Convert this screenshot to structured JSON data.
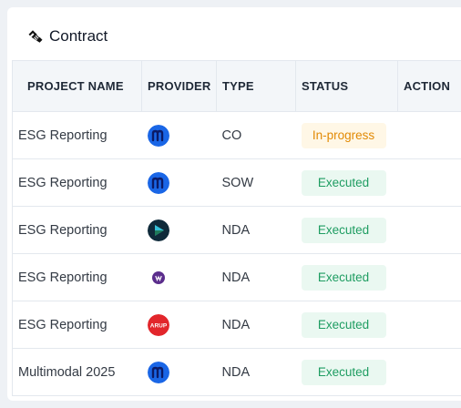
{
  "card": {
    "title": "Contract",
    "icon": "handshake-icon"
  },
  "table": {
    "columns": [
      "PROJECT NAME",
      "PROVIDER",
      "TYPE",
      "STATUS",
      "ACTION"
    ],
    "rows": [
      {
        "project": "ESG Reporting",
        "provider_logo": "m-logo-blue",
        "type": "CO",
        "status": "In-progress",
        "status_kind": "progress"
      },
      {
        "project": "ESG Reporting",
        "provider_logo": "m-logo-blue",
        "type": "SOW",
        "status": "Executed",
        "status_kind": "executed"
      },
      {
        "project": "ESG Reporting",
        "provider_logo": "dark-play-logo",
        "type": "NDA",
        "status": "Executed",
        "status_kind": "executed"
      },
      {
        "project": "ESG Reporting",
        "provider_logo": "w-logo-purple",
        "type": "NDA",
        "status": "Executed",
        "status_kind": "executed"
      },
      {
        "project": "ESG Reporting",
        "provider_logo": "arup-logo",
        "type": "NDA",
        "status": "Executed",
        "status_kind": "executed"
      },
      {
        "project": "Multimodal 2025",
        "provider_logo": "m-logo-blue",
        "type": "NDA",
        "status": "Executed",
        "status_kind": "executed"
      }
    ],
    "logo_text": {
      "arup": "ARUP"
    }
  },
  "colors": {
    "progress_bg": "#fff7e6",
    "progress_fg": "#e28a05",
    "executed_bg": "#eaf8f1",
    "executed_fg": "#1f9d62",
    "m_logo": "#1a66e6"
  }
}
